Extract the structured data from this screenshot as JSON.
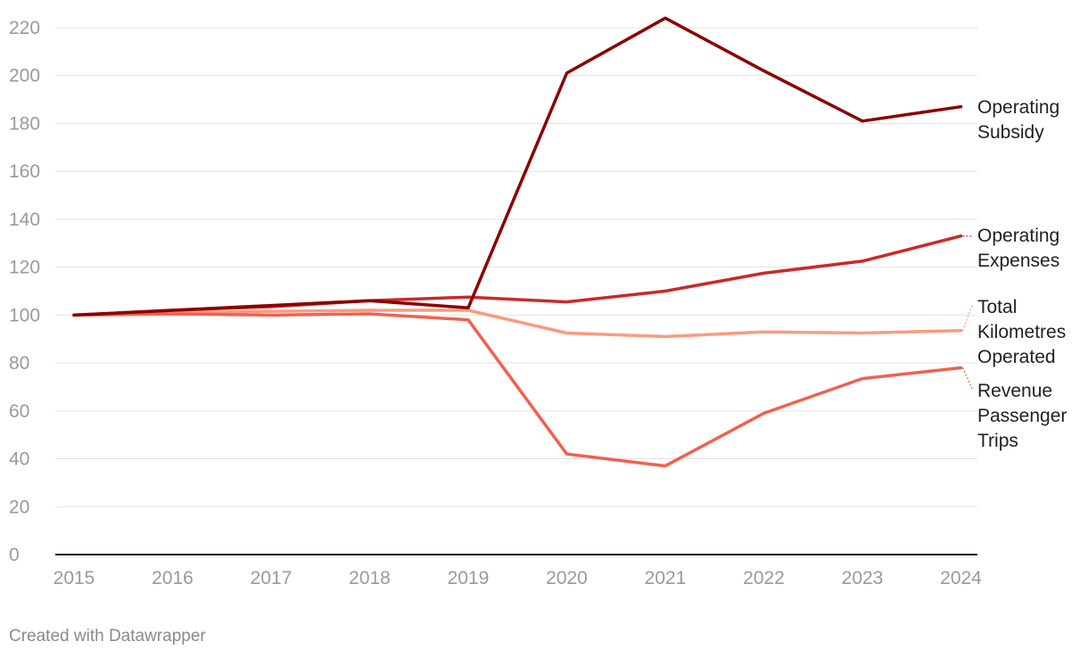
{
  "chart_data": {
    "type": "line",
    "title": "",
    "xlabel": "",
    "ylabel": "",
    "x": [
      "2015",
      "2016",
      "2017",
      "2018",
      "2019",
      "2020",
      "2021",
      "2022",
      "2023",
      "2024"
    ],
    "ylim": [
      0,
      220
    ],
    "yticks": [
      "0",
      "20",
      "40",
      "60",
      "80",
      "100",
      "120",
      "140",
      "160",
      "180",
      "200",
      "220"
    ],
    "grid": true,
    "legend": "direct labels at right end of each line",
    "series": [
      {
        "name": "Operating Subsidy",
        "color": "#8b0000",
        "values": [
          100,
          102,
          104,
          106,
          103,
          201,
          224,
          202,
          181,
          187
        ]
      },
      {
        "name": "Operating Expenses",
        "color": "#c82a2a",
        "values": [
          100,
          102,
          103.5,
          106,
          107.5,
          105.5,
          110,
          117.5,
          122.5,
          133
        ]
      },
      {
        "name": "Total Kilometres Operated",
        "color": "#f99b7f",
        "values": [
          100,
          101,
          101.5,
          102,
          102,
          92.5,
          91,
          93,
          92.5,
          93.5
        ]
      },
      {
        "name": "Revenue Passenger Trips",
        "color": "#f2604f",
        "values": [
          100,
          100.5,
          100,
          100.5,
          98,
          42,
          37,
          59,
          73.5,
          78
        ]
      }
    ]
  },
  "labels": {
    "operating_subsidy": [
      "Operating",
      "Subsidy"
    ],
    "operating_expenses": [
      "Operating",
      "Expenses"
    ],
    "total_km": [
      "Total",
      "Kilometres",
      "Operated"
    ],
    "revenue_trips": [
      "Revenue",
      "Passenger",
      "Trips"
    ]
  },
  "footer": {
    "credit": "Created with Datawrapper"
  }
}
